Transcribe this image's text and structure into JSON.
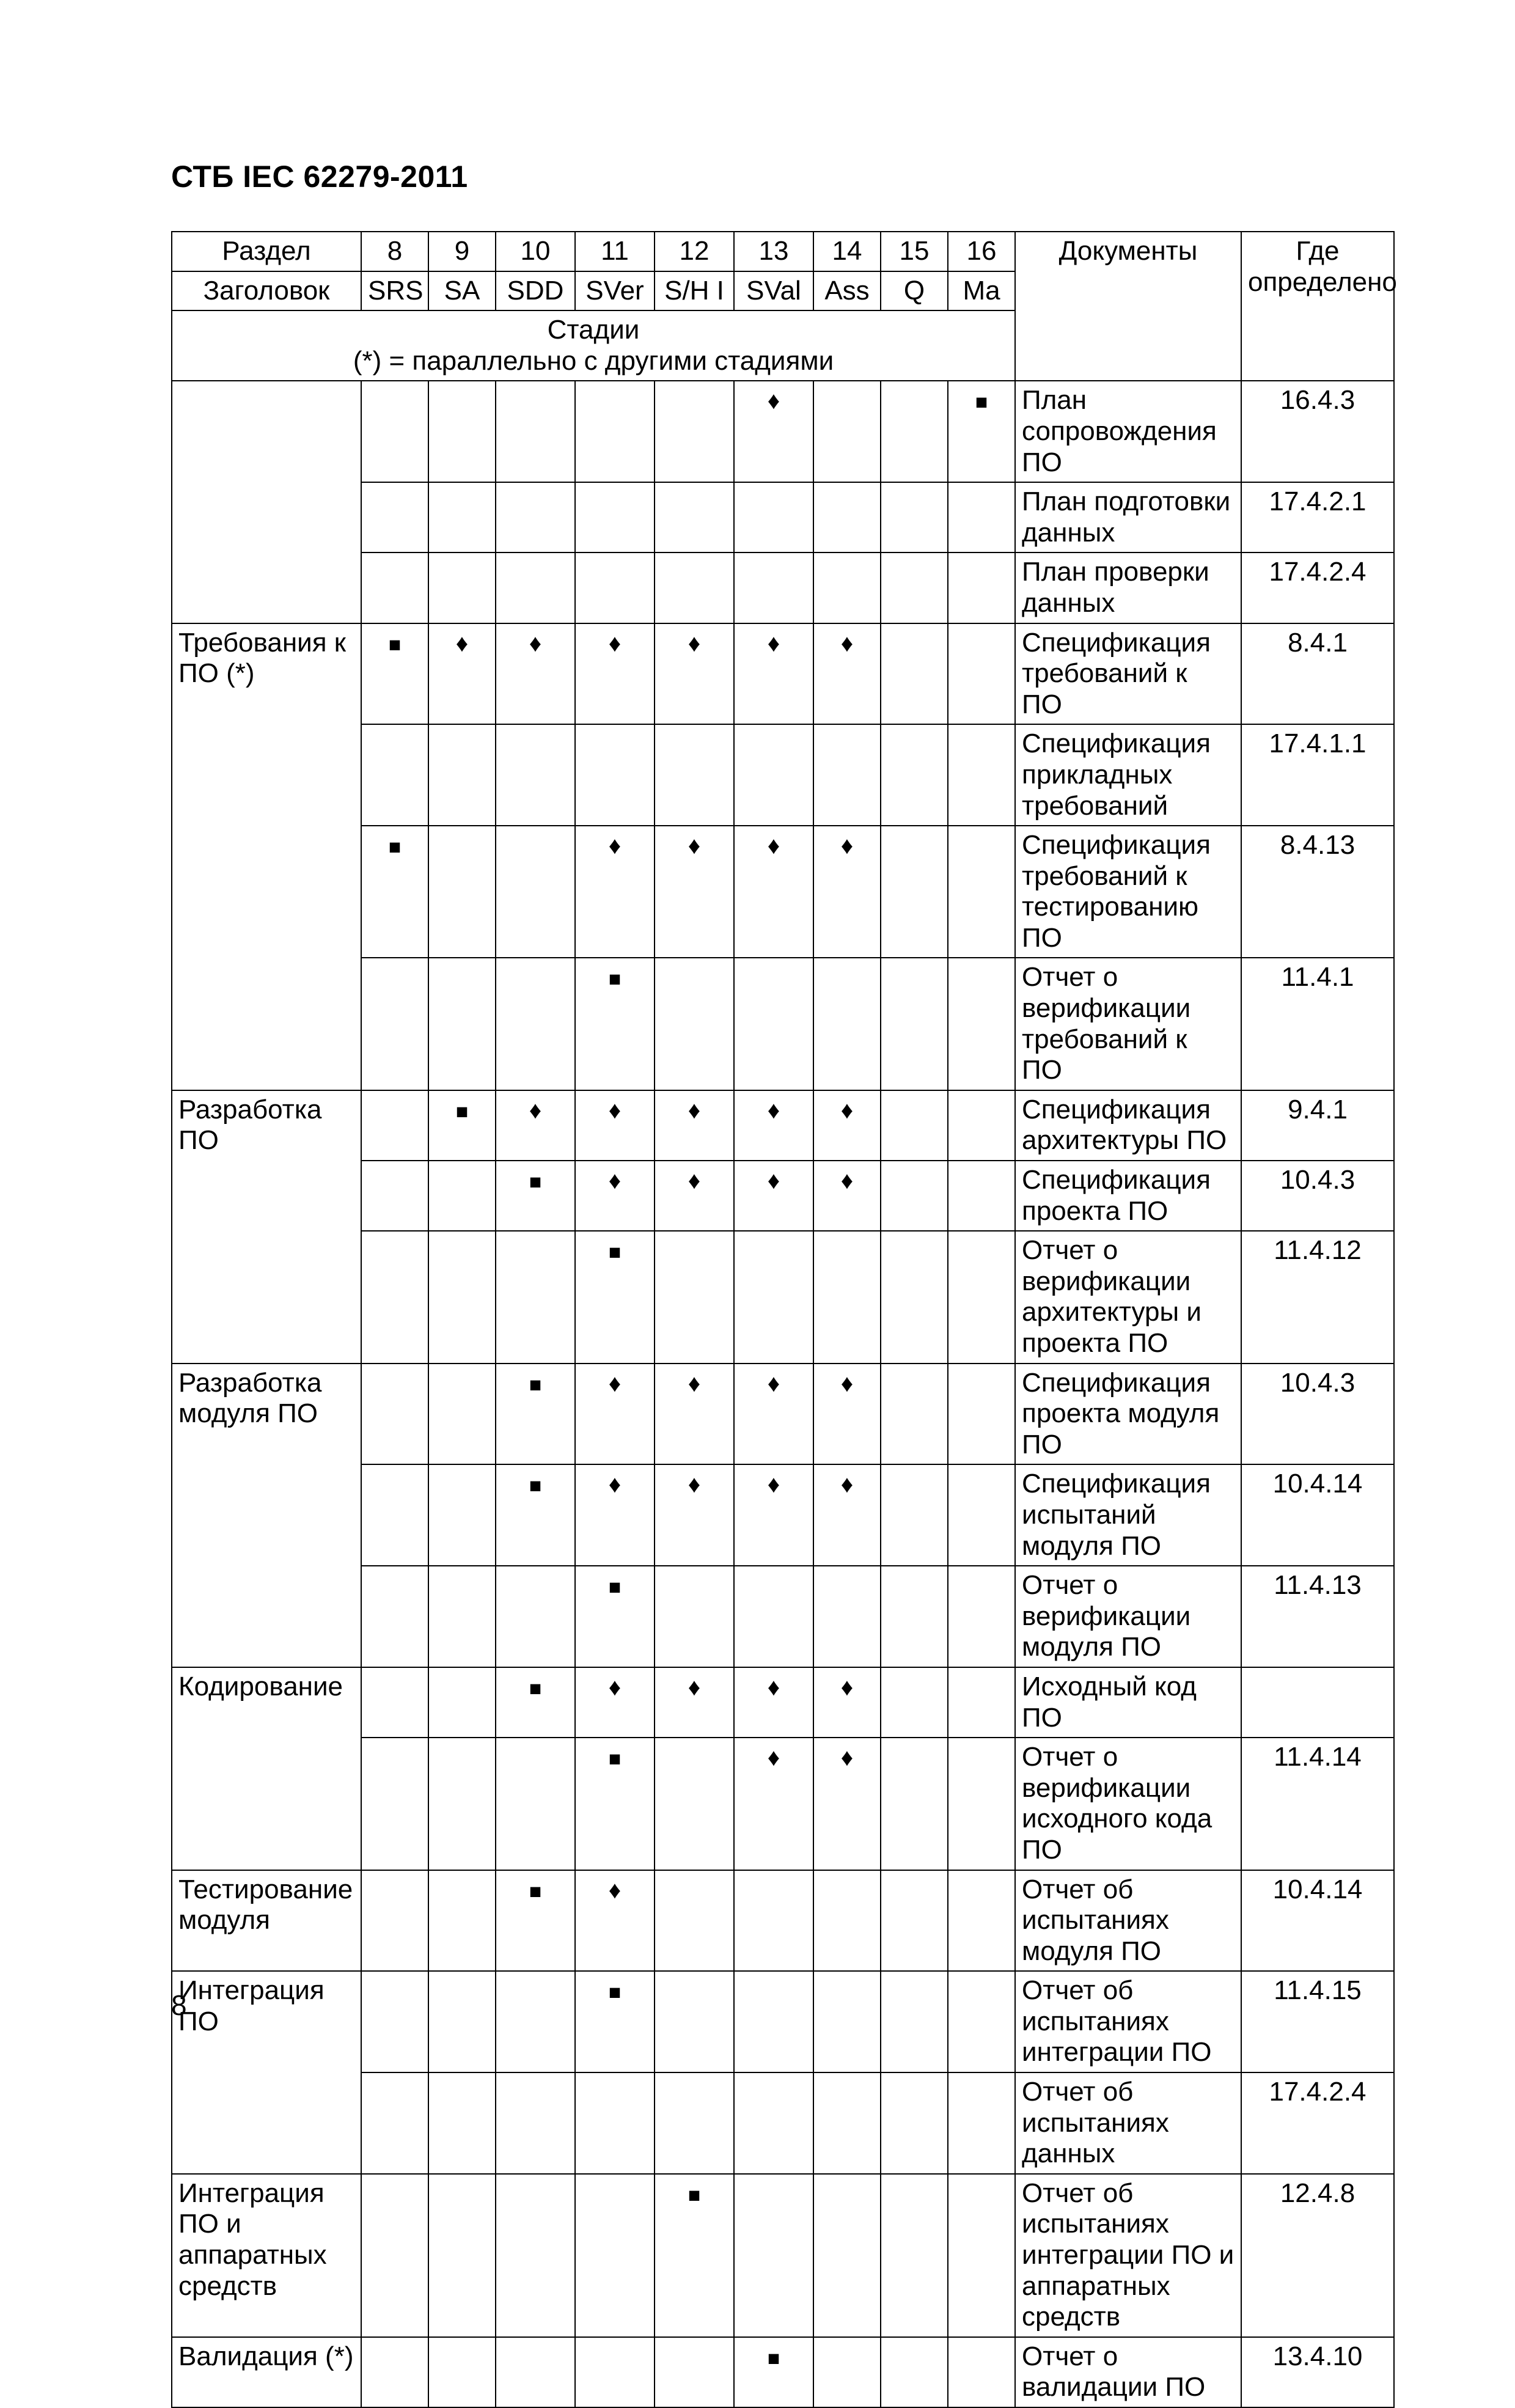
{
  "standard_code": "СТБ IEC 62279-2011",
  "page_number": "8",
  "header": {
    "row_label_section": "Раздел",
    "row_label_title": "Заголовок",
    "col_documents": "Документы",
    "col_where_defined": "Где определено",
    "stages_caption_line1": "Стадии",
    "stages_caption_line2": "(*) = параллельно с другими стадиями",
    "phase_numbers": [
      "8",
      "9",
      "10",
      "11",
      "12",
      "13",
      "14",
      "15",
      "16"
    ],
    "phase_codes": [
      "SRS",
      "SA",
      "SDD",
      "SVer",
      "S/H I",
      "SVal",
      "Ass",
      "Q",
      "Ma"
    ]
  },
  "symbols": {
    "square": "■",
    "diamond": "♦"
  },
  "rows": [
    {
      "side": "",
      "items": [
        {
          "marks": [
            "",
            "",
            "",
            "",
            "",
            "d",
            "",
            "",
            "s"
          ],
          "doc": "План сопровождения ПО",
          "ref": "16.4.3"
        },
        {
          "marks": [
            "",
            "",
            "",
            "",
            "",
            "",
            "",
            "",
            ""
          ],
          "doc": "План подготовки данных",
          "ref": "17.4.2.1"
        },
        {
          "marks": [
            "",
            "",
            "",
            "",
            "",
            "",
            "",
            "",
            ""
          ],
          "doc": "План проверки данных",
          "ref": "17.4.2.4"
        }
      ]
    },
    {
      "side": "Требования к ПО (*)",
      "items": [
        {
          "marks": [
            "s",
            "d",
            "d",
            "d",
            "d",
            "d",
            "d",
            "",
            ""
          ],
          "doc": "Спецификация требований к ПО",
          "ref": "8.4.1"
        },
        {
          "marks": [
            "",
            "",
            "",
            "",
            "",
            "",
            "",
            "",
            ""
          ],
          "doc": "Спецификация прикладных требований",
          "ref": "17.4.1.1"
        },
        {
          "marks": [
            "s",
            "",
            "",
            "d",
            "d",
            "d",
            "d",
            "",
            ""
          ],
          "doc": "Спецификация требований к тестированию ПО",
          "ref": "8.4.13"
        },
        {
          "marks": [
            "",
            "",
            "",
            "s",
            "",
            "",
            "",
            "",
            ""
          ],
          "doc": "Отчет о верификации требований к ПО",
          "ref": "11.4.1"
        }
      ]
    },
    {
      "side": "Разработка ПО",
      "items": [
        {
          "marks": [
            "",
            "s",
            "d",
            "d",
            "d",
            "d",
            "d",
            "",
            ""
          ],
          "doc": "Спецификация архитектуры ПО",
          "ref": "9.4.1"
        },
        {
          "marks": [
            "",
            "",
            "s",
            "d",
            "d",
            "d",
            "d",
            "",
            ""
          ],
          "doc": "Спецификация проекта ПО",
          "ref": "10.4.3"
        },
        {
          "marks": [
            "",
            "",
            "",
            "s",
            "",
            "",
            "",
            "",
            ""
          ],
          "doc": "Отчет о верификации архитектуры и проекта ПО",
          "ref": "11.4.12"
        }
      ]
    },
    {
      "side": "Разработка модуля ПО",
      "items": [
        {
          "marks": [
            "",
            "",
            "s",
            "d",
            "d",
            "d",
            "d",
            "",
            ""
          ],
          "doc": "Спецификация проекта модуля ПО",
          "ref": "10.4.3"
        },
        {
          "marks": [
            "",
            "",
            "s",
            "d",
            "d",
            "d",
            "d",
            "",
            ""
          ],
          "doc": "Спецификация испытаний модуля ПО",
          "ref": "10.4.14"
        },
        {
          "marks": [
            "",
            "",
            "",
            "s",
            "",
            "",
            "",
            "",
            ""
          ],
          "doc": "Отчет о верификации модуля ПО",
          "ref": "11.4.13"
        }
      ]
    },
    {
      "side": "Кодирование",
      "items": [
        {
          "marks": [
            "",
            "",
            "s",
            "d",
            "d",
            "d",
            "d",
            "",
            ""
          ],
          "doc": "Исходный код ПО",
          "ref": ""
        },
        {
          "marks": [
            "",
            "",
            "",
            "s",
            "",
            "d",
            "d",
            "",
            ""
          ],
          "doc": "Отчет о верификации исходного кода ПО",
          "ref": "11.4.14"
        }
      ]
    },
    {
      "side": "Тестирование модуля",
      "items": [
        {
          "marks": [
            "",
            "",
            "s",
            "d",
            "",
            "",
            "",
            "",
            ""
          ],
          "doc": "Отчет об испытаниях модуля ПО",
          "ref": "10.4.14"
        }
      ]
    },
    {
      "side": "Интеграция ПО",
      "items": [
        {
          "marks": [
            "",
            "",
            "",
            "s",
            "",
            "",
            "",
            "",
            ""
          ],
          "doc": "Отчет об испытаниях интеграции ПО",
          "ref": "11.4.15"
        },
        {
          "marks": [
            "",
            "",
            "",
            "",
            "",
            "",
            "",
            "",
            ""
          ],
          "doc": "Отчет об испытаниях данных",
          "ref": "17.4.2.4"
        }
      ]
    },
    {
      "side": "Интеграция ПО и аппаратных средств",
      "items": [
        {
          "marks": [
            "",
            "",
            "",
            "",
            "s",
            "",
            "",
            "",
            ""
          ],
          "doc": "Отчет об испытаниях интеграции ПО и аппаратных средств",
          "ref": "12.4.8"
        }
      ]
    },
    {
      "side": "Валидация (*)",
      "items": [
        {
          "marks": [
            "",
            "",
            "",
            "",
            "",
            "s",
            "",
            "",
            ""
          ],
          "doc": "Отчет о валидации ПО",
          "ref": "13.4.10"
        }
      ]
    }
  ]
}
